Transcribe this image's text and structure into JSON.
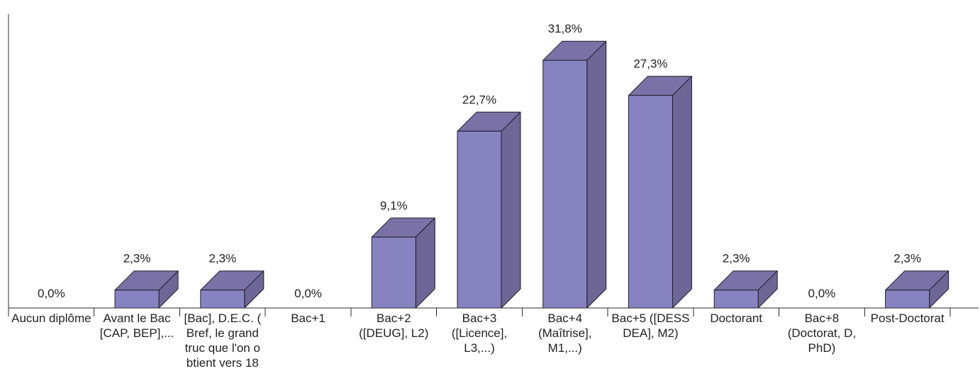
{
  "chart_data": {
    "type": "bar",
    "three_d": true,
    "categories": [
      "Aucun diplôme",
      "Avant le Bac\n[CAP, BEP],...",
      "[Bac], D.E.C. (\nBref, le grand\ntruc que l'on o\nbtient vers 18",
      "Bac+1",
      "Bac+2\n([DEUG], L2)",
      "Bac+3\n([Licence],\nL3,...)",
      "Bac+4\n(Maîtrise],\nM1,...)",
      "Bac+5 ([DESS\nDEA], M2)",
      "Doctorant",
      "Bac+8\n(Doctorat, D,\nPhD)",
      "Post-Doctorat"
    ],
    "values": [
      0.0,
      2.3,
      2.3,
      0.0,
      9.1,
      22.7,
      31.8,
      27.3,
      2.3,
      0.0,
      2.3
    ],
    "value_labels": [
      "0,0%",
      "2,3%",
      "2,3%",
      "0,0%",
      "9,1%",
      "22,7%",
      "31,8%",
      "27,3%",
      "2,3%",
      "0,0%",
      "2,3%"
    ],
    "ylim": [
      0,
      38
    ],
    "grid": false,
    "legend": "none",
    "colors": {
      "bar_front": "#8783c1",
      "bar_top": "#7a72a6",
      "bar_side": "#6d6697",
      "outline": "#1e1e2a",
      "axis": "#2a2a2a",
      "text": "#222222"
    }
  }
}
